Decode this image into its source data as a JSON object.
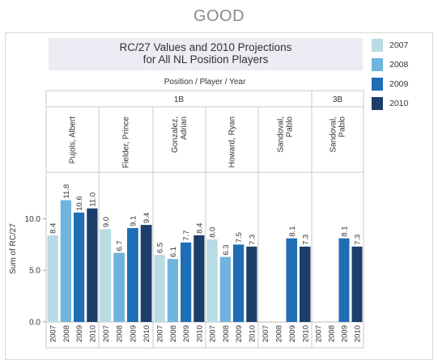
{
  "page": {
    "heading": "GOOD"
  },
  "chart": {
    "title_line1": "RC/27 Values and 2010 Projections",
    "title_line2": "for All NL Position Players"
  },
  "chart_data": {
    "type": "bar",
    "title": "RC/27 Values and 2010 Projections for All NL Position Players",
    "header_label": "Position  /  Player  /  Year",
    "ylabel": "Sum of RC/27",
    "ylim": [
      0,
      14.5
    ],
    "yticks": [
      0.0,
      5.0,
      10.0
    ],
    "ytick_labels": [
      "0.0",
      "5.0",
      "10.0"
    ],
    "value_format": "one-decimal",
    "legend_position": "right",
    "years": [
      "2007",
      "2008",
      "2009",
      "2010"
    ],
    "colors": {
      "2007": "#b8dbe4",
      "2008": "#6fb4dc",
      "2009": "#1f6db5",
      "2010": "#1c3e6a"
    },
    "positions": [
      {
        "name": "1B",
        "players": [
          "Pujols, Albert",
          "Fielder, Prince",
          "Gonzalez, Adrian",
          "Howard, Ryan"
        ]
      },
      {
        "name": "3B",
        "players": [
          "Sandoval, Pablo"
        ]
      }
    ],
    "player_columns": [
      {
        "position": "1B",
        "player": "Pujols, Albert",
        "label_lines": [
          "Pujols, Albert"
        ],
        "values": [
          8.4,
          11.8,
          10.6,
          11.0
        ]
      },
      {
        "position": "1B",
        "player": "Fielder, Prince",
        "label_lines": [
          "Fielder, Prince"
        ],
        "values": [
          9.0,
          6.7,
          9.1,
          9.4
        ]
      },
      {
        "position": "1B",
        "player": "Gonzalez, Adrian",
        "label_lines": [
          "Gonzalez,",
          "Adrian"
        ],
        "values": [
          6.5,
          6.1,
          7.7,
          8.4
        ]
      },
      {
        "position": "1B",
        "player": "Howard, Ryan",
        "label_lines": [
          "Howard, Ryan"
        ],
        "values": [
          8.0,
          6.3,
          7.5,
          7.3
        ]
      },
      {
        "position": "1B",
        "player": "Sandoval, Pablo",
        "label_lines": [
          "Sandoval,",
          "Pablo"
        ],
        "values": [
          null,
          null,
          8.1,
          7.3
        ]
      },
      {
        "position": "3B",
        "player": "Sandoval, Pablo",
        "label_lines": [
          "Sandoval,",
          "Pablo"
        ],
        "values": [
          null,
          null,
          8.1,
          7.3
        ]
      }
    ]
  }
}
